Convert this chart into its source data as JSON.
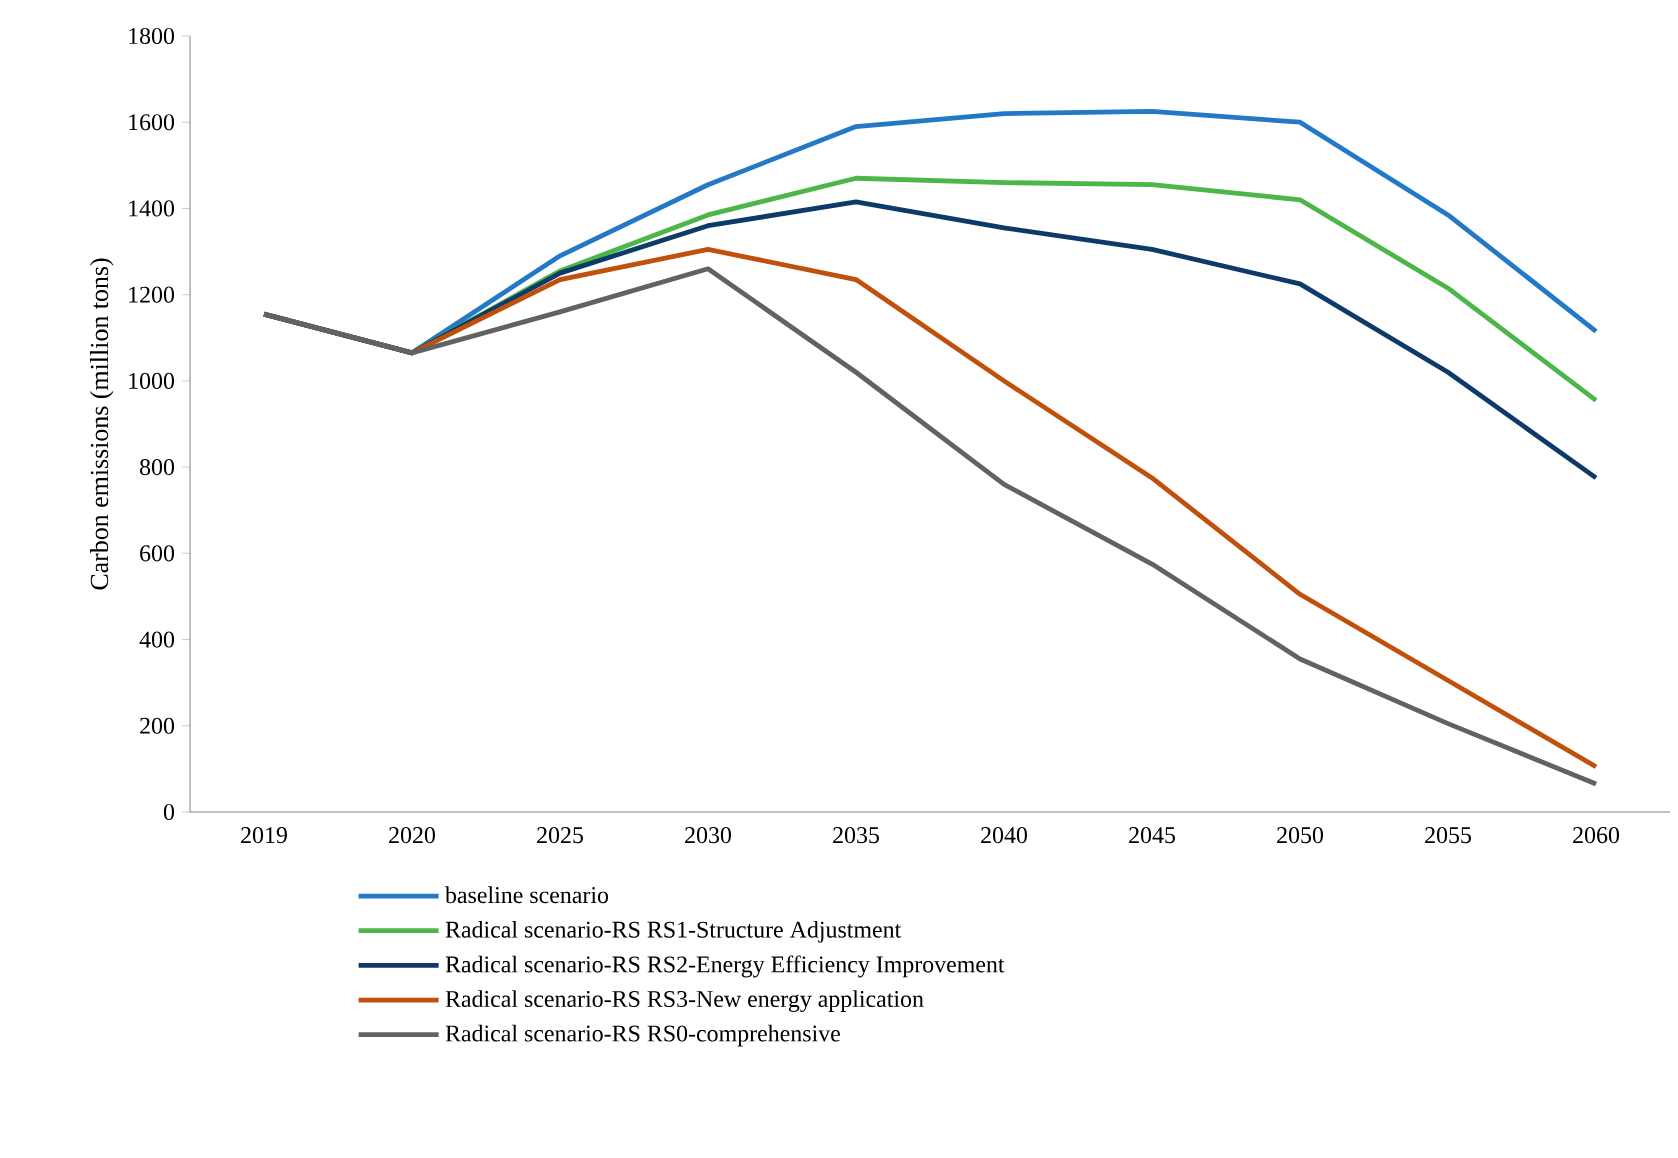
{
  "chart_data": {
    "type": "line",
    "ylabel": "Carbon emissions (million tons)",
    "categories": [
      "2019",
      "2020",
      "2025",
      "2030",
      "2035",
      "2040",
      "2045",
      "2050",
      "2055",
      "2060"
    ],
    "ylim": [
      0,
      1800
    ],
    "yticks": [
      0,
      200,
      400,
      600,
      800,
      1000,
      1200,
      1400,
      1600,
      1800
    ],
    "legend": "bottom",
    "marker": "none",
    "line_style": "solid",
    "series": [
      {
        "name": "baseline scenario",
        "color": "#2478c8",
        "values": [
          1155,
          1065,
          1290,
          1455,
          1590,
          1620,
          1625,
          1600,
          1385,
          1115
        ]
      },
      {
        "name": "Radical scenario-RS RS1-Structure Adjustment",
        "color": "#4cb648",
        "values": [
          1155,
          1065,
          1255,
          1385,
          1470,
          1460,
          1455,
          1420,
          1215,
          955
        ]
      },
      {
        "name": "Radical scenario-RS RS2-Energy Efficiency Improvement",
        "color": "#0e3a6a",
        "values": [
          1155,
          1065,
          1250,
          1360,
          1415,
          1355,
          1305,
          1225,
          1020,
          775
        ]
      },
      {
        "name": "Radical scenario-RS RS3-New energy application",
        "color": "#c0500c",
        "values": [
          1155,
          1065,
          1235,
          1305,
          1235,
          1000,
          775,
          505,
          305,
          105
        ]
      },
      {
        "name": "Radical scenario-RS RS0-comprehensive",
        "color": "#626262",
        "values": [
          1155,
          1065,
          1160,
          1260,
          1020,
          760,
          575,
          355,
          205,
          65
        ]
      }
    ]
  }
}
